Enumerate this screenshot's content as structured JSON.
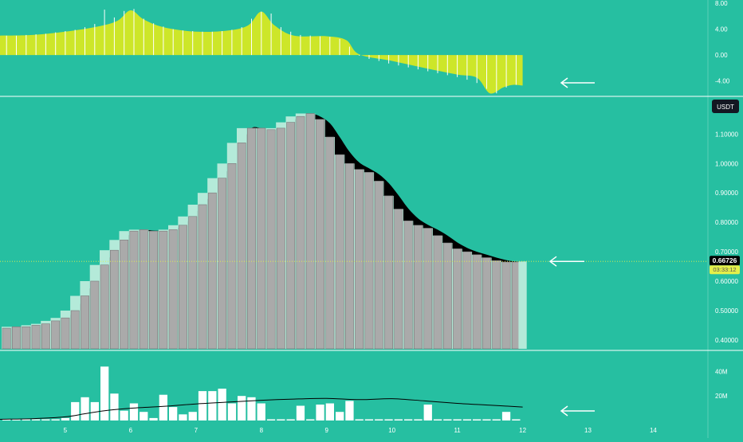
{
  "colors": {
    "background": "#26bfa1",
    "oscillator_fill": "#cde629",
    "bar_fill": "#aaaaaa",
    "bar_highlight": "#b4ead9",
    "dark_fill": "#000000",
    "volume_bar": "#ffffff",
    "divider": "#ffffff",
    "axis_label": "#ffffff",
    "price_badge_bg": "#000000",
    "countdown_badge_bg": "#e4f04a",
    "currency_badge_bg": "#131722",
    "last_price_line": "#e4f04a",
    "arrow": "#ffffff"
  },
  "header": {
    "currency": "USDT"
  },
  "badges": {
    "last_price": "0.66726",
    "countdown": "03:33:12"
  },
  "chart_data": [
    {
      "type": "area",
      "panel": "oscillator",
      "ylim": [
        -6.0,
        8.0
      ],
      "yticks": [
        "8.00",
        "4.00",
        "0.00",
        "-4.00"
      ],
      "x": [
        4.0,
        4.5,
        5.0,
        5.5,
        5.8,
        6.0,
        6.2,
        6.5,
        7.0,
        7.5,
        7.8,
        8.0,
        8.2,
        8.5,
        9.0,
        9.3,
        9.5,
        10.0,
        10.5,
        11.0,
        11.3,
        11.5,
        11.7,
        11.85,
        12.0
      ],
      "values": [
        3.0,
        3.1,
        3.6,
        4.4,
        5.3,
        6.9,
        5.5,
        4.3,
        3.6,
        3.8,
        4.6,
        6.7,
        4.6,
        3.0,
        2.9,
        2.3,
        0.1,
        -0.9,
        -2.0,
        -3.0,
        -3.5,
        -5.9,
        -5.0,
        -4.6,
        -4.7
      ],
      "spike_x": [
        4.1,
        4.25,
        4.4,
        4.55,
        4.7,
        4.85,
        5.0,
        5.15,
        5.3,
        5.45,
        5.6,
        5.75,
        5.9,
        6.05,
        6.2,
        6.35,
        6.5,
        6.65,
        6.8,
        6.95,
        7.1,
        7.25,
        7.4,
        7.55,
        7.7,
        7.85,
        8.0,
        8.15,
        8.3,
        8.45,
        8.6,
        8.75,
        8.9,
        9.05,
        9.2,
        9.35,
        9.5,
        9.65,
        9.8,
        9.95,
        10.1,
        10.25,
        10.4,
        10.55,
        10.7,
        10.85,
        11.0,
        11.15,
        11.3,
        11.45,
        11.6,
        11.75,
        11.9
      ],
      "spike_values": [
        3.0,
        3.0,
        3.1,
        3.2,
        3.3,
        3.5,
        3.7,
        3.9,
        4.3,
        4.8,
        7.0,
        5.8,
        6.8,
        7.1,
        5.6,
        4.9,
        4.4,
        4.0,
        3.8,
        3.7,
        3.6,
        3.6,
        3.7,
        3.9,
        4.3,
        5.6,
        6.7,
        6.4,
        4.3,
        3.6,
        3.1,
        3.0,
        2.9,
        2.8,
        2.5,
        1.3,
        -0.1,
        -0.6,
        -0.9,
        -1.3,
        -1.6,
        -1.9,
        -2.2,
        -2.5,
        -2.8,
        -3.1,
        -3.4,
        -3.8,
        -4.3,
        -5.2,
        -5.9,
        -5.0,
        -4.6
      ]
    },
    {
      "type": "bar",
      "panel": "price",
      "ylim": [
        0.37,
        1.22
      ],
      "yticks": [
        "1.10000",
        "1.00000",
        "0.90000",
        "0.80000",
        "0.70000",
        "0.60000",
        "0.50000",
        "0.40000"
      ],
      "x": [
        4.1,
        4.25,
        4.4,
        4.55,
        4.7,
        4.85,
        5.0,
        5.15,
        5.3,
        5.45,
        5.6,
        5.75,
        5.9,
        6.05,
        6.2,
        6.35,
        6.5,
        6.65,
        6.8,
        6.95,
        7.1,
        7.25,
        7.4,
        7.55,
        7.7,
        7.85,
        8.0,
        8.15,
        8.3,
        8.45,
        8.6,
        8.75,
        8.9,
        9.05,
        9.2,
        9.35,
        9.5,
        9.65,
        9.8,
        9.95,
        10.1,
        10.25,
        10.4,
        10.55,
        10.7,
        10.85,
        11.0,
        11.15,
        11.3,
        11.45,
        11.6,
        11.75,
        11.9
      ],
      "values": [
        0.44,
        0.445,
        0.445,
        0.45,
        0.455,
        0.465,
        0.475,
        0.5,
        0.55,
        0.6,
        0.655,
        0.705,
        0.74,
        0.77,
        0.775,
        0.77,
        0.77,
        0.775,
        0.79,
        0.82,
        0.86,
        0.9,
        0.95,
        1.0,
        1.07,
        1.12,
        1.12,
        1.115,
        1.12,
        1.14,
        1.16,
        1.17,
        1.15,
        1.09,
        1.03,
        1.0,
        0.98,
        0.97,
        0.94,
        0.89,
        0.845,
        0.805,
        0.79,
        0.78,
        0.755,
        0.73,
        0.71,
        0.7,
        0.69,
        0.68,
        0.67,
        0.665,
        0.665
      ],
      "last_price": 0.66726,
      "current_bar_x": 12.0,
      "current_bar_value": 0.667
    },
    {
      "type": "bar",
      "panel": "volume",
      "ylim": [
        0,
        52
      ],
      "yticks": [
        "40M",
        "20M"
      ],
      "x": [
        4.1,
        4.25,
        4.4,
        4.55,
        4.7,
        4.85,
        5.0,
        5.15,
        5.3,
        5.45,
        5.6,
        5.75,
        5.9,
        6.05,
        6.2,
        6.35,
        6.5,
        6.65,
        6.8,
        6.95,
        7.1,
        7.25,
        7.4,
        7.55,
        7.7,
        7.85,
        8.0,
        8.15,
        8.3,
        8.45,
        8.6,
        8.75,
        8.9,
        9.05,
        9.2,
        9.35,
        9.5,
        9.65,
        9.8,
        9.95,
        10.1,
        10.25,
        10.4,
        10.55,
        10.7,
        10.85,
        11.0,
        11.15,
        11.3,
        11.45,
        11.6,
        11.75,
        11.9
      ],
      "values": [
        1,
        1,
        1,
        1,
        1,
        1,
        2,
        15,
        19,
        15,
        44,
        22,
        8,
        14,
        7,
        2,
        21,
        11,
        5,
        7,
        24,
        24,
        26,
        14,
        20,
        19,
        14,
        1,
        1,
        1,
        12,
        1,
        13,
        14,
        7,
        16,
        1,
        1,
        1,
        1,
        1,
        1,
        1,
        13,
        1,
        1,
        1,
        1,
        1,
        1,
        1,
        7,
        1
      ],
      "ma_x": [
        4.0,
        4.5,
        5.0,
        5.3,
        5.6,
        6.0,
        6.5,
        7.0,
        7.5,
        8.0,
        8.5,
        9.0,
        9.5,
        10.0,
        10.5,
        11.0,
        11.5,
        12.0
      ],
      "ma_values": [
        1.0,
        1.5,
        3.0,
        5.5,
        8.0,
        10.0,
        11.5,
        13.5,
        15.0,
        16.5,
        17.5,
        18.0,
        17.0,
        17.8,
        16.0,
        14.0,
        12.5,
        11.0
      ]
    }
  ],
  "x_axis": {
    "range": [
      4.0,
      14.8
    ],
    "ticks": [
      {
        "value": 5,
        "label": "5"
      },
      {
        "value": 6,
        "label": "6"
      },
      {
        "value": 7,
        "label": "7"
      },
      {
        "value": 8,
        "label": "8"
      },
      {
        "value": 9,
        "label": "9"
      },
      {
        "value": 10,
        "label": "10"
      },
      {
        "value": 11,
        "label": "11"
      },
      {
        "value": 12,
        "label": "12"
      },
      {
        "value": 13,
        "label": "13"
      },
      {
        "value": 14,
        "label": "14"
      }
    ]
  }
}
